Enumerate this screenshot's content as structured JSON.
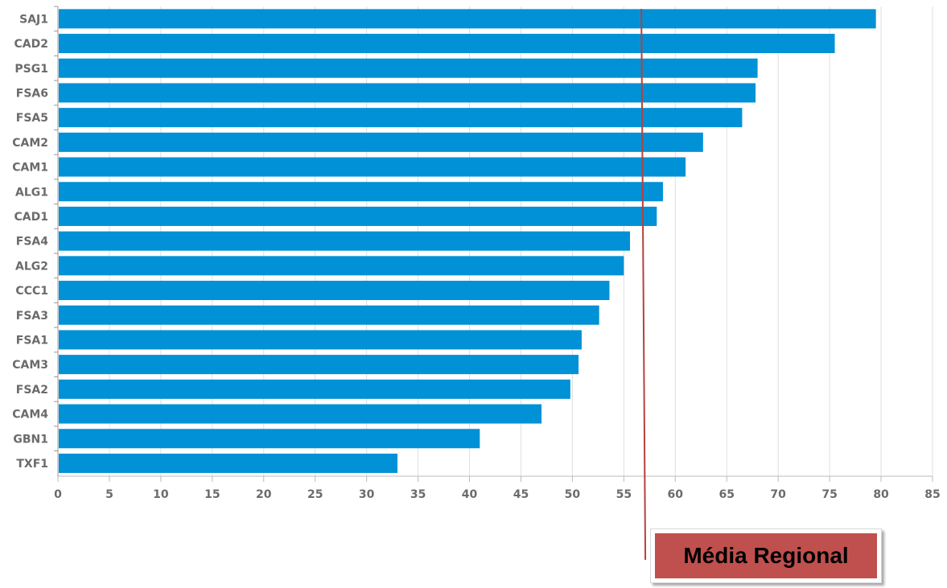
{
  "colors": {
    "bar": "#0091d6",
    "reference_line": "#b5413f",
    "legend_fill": "#c0504d",
    "grid": "#e0e0e0",
    "axis_text": "#6b6b6b"
  },
  "chart_data": {
    "type": "bar",
    "orientation": "horizontal",
    "title": "",
    "xlabel": "",
    "ylabel": "",
    "xlim": [
      0,
      85
    ],
    "x_ticks": [
      "0",
      "5",
      "10",
      "15",
      "20",
      "25",
      "30",
      "35",
      "40",
      "45",
      "50",
      "55",
      "60",
      "65",
      "70",
      "75",
      "80",
      "85"
    ],
    "grid": "vertical",
    "categories": [
      "SAJ1",
      "CAD2",
      "PSG1",
      "FSA6",
      "FSA5",
      "CAM2",
      "CAM1",
      "ALG1",
      "CAD1",
      "FSA4",
      "ALG2",
      "CCC1",
      "FSA3",
      "FSA1",
      "CAM3",
      "FSA2",
      "CAM4",
      "GBN1",
      "TXF1"
    ],
    "values": [
      79.5,
      75.5,
      68.0,
      67.8,
      66.5,
      62.7,
      61.0,
      58.8,
      58.2,
      55.6,
      55.0,
      53.6,
      52.6,
      50.9,
      50.6,
      49.8,
      47.0,
      41.0,
      33.0
    ],
    "reference_line": {
      "label": "Média Regional",
      "value": 56.7
    }
  }
}
